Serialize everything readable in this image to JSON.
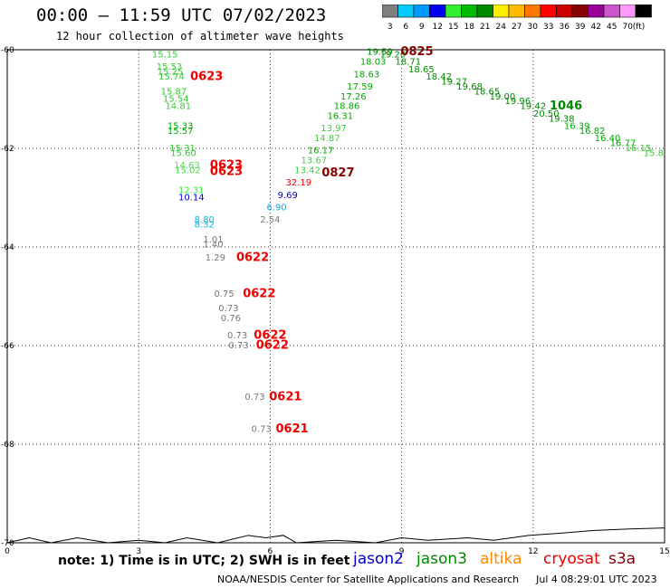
{
  "header": {
    "title": "00:00 – 11:59 UTC 07/02/2023",
    "subtitle": "12 hour collection of altimeter wave heights"
  },
  "legend": {
    "unit": "(ft)",
    "bins": [
      {
        "label": "3",
        "color": "#7f7f7f"
      },
      {
        "label": "6",
        "color": "#00ccff"
      },
      {
        "label": "9",
        "color": "#0099ff"
      },
      {
        "label": "12",
        "color": "#0000ee"
      },
      {
        "label": "15",
        "color": "#33ee33"
      },
      {
        "label": "18",
        "color": "#00bb00"
      },
      {
        "label": "21",
        "color": "#008800"
      },
      {
        "label": "24",
        "color": "#ffee00"
      },
      {
        "label": "27",
        "color": "#ffbb00"
      },
      {
        "label": "30",
        "color": "#ff7700"
      },
      {
        "label": "33",
        "color": "#ff0000"
      },
      {
        "label": "36",
        "color": "#cc0000"
      },
      {
        "label": "39",
        "color": "#880000"
      },
      {
        "label": "42",
        "color": "#990099"
      },
      {
        "label": "45",
        "color": "#cc55cc"
      },
      {
        "label": "70",
        "color": "#ff99ff"
      },
      {
        "label": "",
        "color": "#000000"
      }
    ]
  },
  "footer": {
    "note": "note: 1) Time is in UTC; 2) SWH is in feet",
    "satellites": [
      {
        "name": "jason2",
        "color": "#0000cc"
      },
      {
        "name": "jason3",
        "color": "#008800"
      },
      {
        "name": "altika",
        "color": "#ff8800"
      },
      {
        "name": "cryosat",
        "color": "#ee0000"
      },
      {
        "name": "s3a",
        "color": "#880000"
      }
    ],
    "credit": "NOAA/NESDIS Center for Satellite Applications and Research",
    "timestamp": "Jul  4 08:29:01 UTC 2023"
  },
  "chart_data": {
    "type": "scatter",
    "xlim": [
      0,
      15
    ],
    "ylim": [
      -70,
      -60
    ],
    "x_ticks": [
      "0",
      "3",
      "6",
      "9",
      "12",
      "15"
    ],
    "y_ticks": [
      "-60",
      "-62",
      "-64",
      "-66",
      "-68",
      "-70"
    ],
    "grid": true,
    "coastline": [
      [
        0,
        -70.0
      ],
      [
        0.5,
        -69.9
      ],
      [
        1.0,
        -70.0
      ],
      [
        1.6,
        -69.9
      ],
      [
        2.3,
        -70.0
      ],
      [
        3.0,
        -69.95
      ],
      [
        3.6,
        -70.0
      ],
      [
        4.1,
        -69.9
      ],
      [
        4.8,
        -70.0
      ],
      [
        5.5,
        -69.85
      ],
      [
        5.9,
        -69.9
      ],
      [
        6.3,
        -69.85
      ],
      [
        6.6,
        -70.0
      ],
      [
        7.5,
        -69.95
      ],
      [
        8.4,
        -70.0
      ],
      [
        9.0,
        -69.9
      ],
      [
        9.6,
        -69.95
      ],
      [
        10.5,
        -69.9
      ],
      [
        11.1,
        -69.95
      ],
      [
        11.9,
        -69.85
      ],
      [
        12.7,
        -69.8
      ],
      [
        13.4,
        -69.75
      ],
      [
        14.2,
        -69.72
      ],
      [
        15.0,
        -69.7
      ]
    ],
    "observations": [
      {
        "label": "15.15",
        "x": 3.6,
        "y": -60.1,
        "color": "#33cc33"
      },
      {
        "label": "15.53",
        "x": 3.7,
        "y": -60.35,
        "color": "#33cc33"
      },
      {
        "label": "15.25",
        "x": 3.72,
        "y": -60.45,
        "color": "#33cc33"
      },
      {
        "label": "15.74",
        "x": 3.75,
        "y": -60.55,
        "color": "#33cc33"
      },
      {
        "label": "0623",
        "x": 4.55,
        "y": -60.55,
        "color": "#ee0000",
        "code": true
      },
      {
        "label": "15.87",
        "x": 3.8,
        "y": -60.85,
        "color": "#33cc33"
      },
      {
        "label": "15.54",
        "x": 3.85,
        "y": -61.0,
        "color": "#33cc33"
      },
      {
        "label": "14.81",
        "x": 3.9,
        "y": -61.15,
        "color": "#33cc33"
      },
      {
        "label": "15.33",
        "x": 3.95,
        "y": -61.55,
        "color": "#00aa00"
      },
      {
        "label": "15.57",
        "x": 3.95,
        "y": -61.65,
        "color": "#00aa00"
      },
      {
        "label": "15.31",
        "x": 4.0,
        "y": -62.0,
        "color": "#33cc33"
      },
      {
        "label": "15.60",
        "x": 4.02,
        "y": -62.1,
        "color": "#33cc33"
      },
      {
        "label": "14.63",
        "x": 4.1,
        "y": -62.35,
        "color": "#55dd55"
      },
      {
        "label": "0623",
        "x": 5.0,
        "y": -62.35,
        "color": "#ee0000",
        "code": true
      },
      {
        "label": "15.02",
        "x": 4.12,
        "y": -62.45,
        "color": "#55dd55"
      },
      {
        "label": "0623",
        "x": 5.0,
        "y": -62.48,
        "color": "#ee0000",
        "code": true
      },
      {
        "label": "12.31",
        "x": 4.2,
        "y": -62.85,
        "color": "#33ee33"
      },
      {
        "label": "10.14",
        "x": 4.2,
        "y": -63.0,
        "color": "#0000cc"
      },
      {
        "label": "8.80",
        "x": 4.5,
        "y": -63.45,
        "color": "#00bbee"
      },
      {
        "label": "8.32",
        "x": 4.5,
        "y": -63.55,
        "color": "#00bbee"
      },
      {
        "label": "1.01",
        "x": 4.7,
        "y": -63.85,
        "color": "#777777"
      },
      {
        "label": "1.40",
        "x": 4.7,
        "y": -63.95,
        "color": "#777777"
      },
      {
        "label": "1.29",
        "x": 4.75,
        "y": -64.22,
        "color": "#777777"
      },
      {
        "label": "0622",
        "x": 5.6,
        "y": -64.22,
        "color": "#ee0000",
        "code": true
      },
      {
        "label": "0.75",
        "x": 4.95,
        "y": -64.95,
        "color": "#777777"
      },
      {
        "label": "0622",
        "x": 5.75,
        "y": -64.95,
        "color": "#ee0000",
        "code": true
      },
      {
        "label": "0.73",
        "x": 5.05,
        "y": -65.25,
        "color": "#777777"
      },
      {
        "label": "0.76",
        "x": 5.1,
        "y": -65.45,
        "color": "#777777"
      },
      {
        "label": "0.73",
        "x": 5.25,
        "y": -65.8,
        "color": "#777777"
      },
      {
        "label": "0622",
        "x": 6.0,
        "y": -65.8,
        "color": "#ee0000",
        "code": true
      },
      {
        "label": "0.73",
        "x": 5.28,
        "y": -66.0,
        "color": "#777777"
      },
      {
        "label": "0622",
        "x": 6.05,
        "y": -66.0,
        "color": "#ee0000",
        "code": true
      },
      {
        "label": "0.73",
        "x": 5.65,
        "y": -67.05,
        "color": "#777777"
      },
      {
        "label": "0621",
        "x": 6.35,
        "y": -67.05,
        "color": "#ee0000",
        "code": true
      },
      {
        "label": "0.73",
        "x": 5.8,
        "y": -67.7,
        "color": "#777777"
      },
      {
        "label": "0621",
        "x": 6.5,
        "y": -67.7,
        "color": "#ee0000",
        "code": true
      },
      {
        "label": "2.54",
        "x": 6.0,
        "y": -63.45,
        "color": "#777777"
      },
      {
        "label": "6.90",
        "x": 6.15,
        "y": -63.2,
        "color": "#00aaee"
      },
      {
        "label": "9.69",
        "x": 6.4,
        "y": -62.95,
        "color": "#0000cc"
      },
      {
        "label": "32.19",
        "x": 6.65,
        "y": -62.7,
        "color": "#ee0000"
      },
      {
        "label": "0827",
        "x": 7.55,
        "y": -62.5,
        "color": "#880000",
        "code": true
      },
      {
        "label": "13.42",
        "x": 6.85,
        "y": -62.45,
        "color": "#44cc44"
      },
      {
        "label": "13.67",
        "x": 7.0,
        "y": -62.25,
        "color": "#44cc44"
      },
      {
        "label": "16.17",
        "x": 7.15,
        "y": -62.05,
        "color": "#00aa00"
      },
      {
        "label": "14.87",
        "x": 7.3,
        "y": -61.8,
        "color": "#44cc44"
      },
      {
        "label": "13.97",
        "x": 7.45,
        "y": -61.6,
        "color": "#44cc44"
      },
      {
        "label": "16.31",
        "x": 7.6,
        "y": -61.35,
        "color": "#00aa00"
      },
      {
        "label": "18.86",
        "x": 7.75,
        "y": -61.15,
        "color": "#00aa00"
      },
      {
        "label": "17.26",
        "x": 7.9,
        "y": -60.95,
        "color": "#00aa00"
      },
      {
        "label": "17.59",
        "x": 8.05,
        "y": -60.75,
        "color": "#00aa00"
      },
      {
        "label": "18.63",
        "x": 8.2,
        "y": -60.5,
        "color": "#00aa00"
      },
      {
        "label": "18.03",
        "x": 8.35,
        "y": -60.25,
        "color": "#00aa00"
      },
      {
        "label": "19.59",
        "x": 8.5,
        "y": -60.05,
        "color": "#008800"
      },
      {
        "label": "19.20",
        "x": 8.8,
        "y": -60.1,
        "color": "#008800"
      },
      {
        "label": "0825",
        "x": 9.35,
        "y": -60.05,
        "color": "#880000",
        "code": true
      },
      {
        "label": "18.71",
        "x": 9.15,
        "y": -60.25,
        "color": "#008800"
      },
      {
        "label": "18.65",
        "x": 9.45,
        "y": -60.4,
        "color": "#008800"
      },
      {
        "label": "18.42",
        "x": 9.85,
        "y": -60.55,
        "color": "#008800"
      },
      {
        "label": "19.27",
        "x": 10.2,
        "y": -60.65,
        "color": "#008800"
      },
      {
        "label": "19.68",
        "x": 10.55,
        "y": -60.75,
        "color": "#008800"
      },
      {
        "label": "18.65",
        "x": 10.95,
        "y": -60.85,
        "color": "#008800"
      },
      {
        "label": "19.00",
        "x": 11.3,
        "y": -60.95,
        "color": "#008800"
      },
      {
        "label": "19.96",
        "x": 11.65,
        "y": -61.05,
        "color": "#008800"
      },
      {
        "label": "19.42",
        "x": 12.0,
        "y": -61.15,
        "color": "#008800"
      },
      {
        "label": "1046",
        "x": 12.75,
        "y": -61.15,
        "color": "#008800",
        "code": true
      },
      {
        "label": "20.50",
        "x": 12.3,
        "y": -61.3,
        "color": "#008800"
      },
      {
        "label": "19.38",
        "x": 12.65,
        "y": -61.4,
        "color": "#008800"
      },
      {
        "label": "16.39",
        "x": 13.0,
        "y": -61.55,
        "color": "#00aa00"
      },
      {
        "label": "16.82",
        "x": 13.35,
        "y": -61.65,
        "color": "#00aa00"
      },
      {
        "label": "16.40",
        "x": 13.7,
        "y": -61.8,
        "color": "#00aa00"
      },
      {
        "label": "16.77",
        "x": 14.05,
        "y": -61.9,
        "color": "#00aa00"
      },
      {
        "label": "16.15",
        "x": 14.4,
        "y": -62.0,
        "color": "#33cc33"
      },
      {
        "label": "15.8",
        "x": 14.75,
        "y": -62.1,
        "color": "#33cc33"
      }
    ]
  }
}
